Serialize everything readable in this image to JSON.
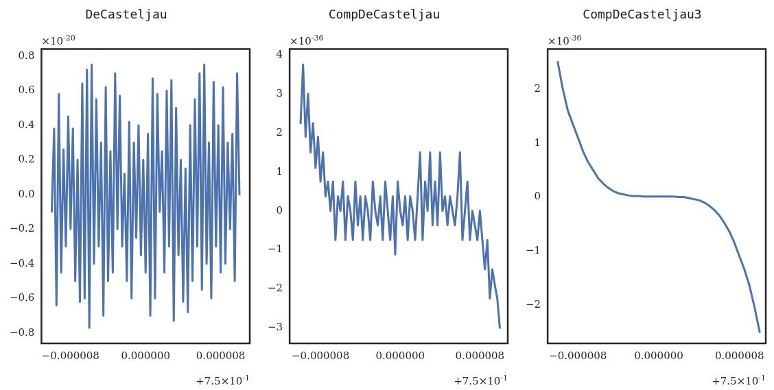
{
  "chart_data": [
    {
      "type": "line",
      "title": "DeCasteljau",
      "marker": "none",
      "grid": false,
      "legend": false,
      "annotations": [
        "×10$^{-20}$",
        "+7.5×10$^{-1}$"
      ],
      "x": [
        -1e-05,
        -9.75e-06,
        -9.5e-06,
        -9.25e-06,
        -9e-06,
        -8.75e-06,
        -8.5e-06,
        -8.25e-06,
        -8e-06,
        -7.75e-06,
        -7.5e-06,
        -7.25e-06,
        -7e-06,
        -6.75e-06,
        -6.5e-06,
        -6.25e-06,
        -6e-06,
        -5.75e-06,
        -5.5e-06,
        -5.25e-06,
        -5e-06,
        -4.75e-06,
        -4.5e-06,
        -4.25e-06,
        -4e-06,
        -3.75e-06,
        -3.5e-06,
        -3.25e-06,
        -3e-06,
        -2.75e-06,
        -2.5e-06,
        -2.25e-06,
        -2e-06,
        -1.75e-06,
        -1.5e-06,
        -1.25e-06,
        -1e-06,
        -7.5e-07,
        -5e-07,
        -2.5e-07,
        0,
        2.5e-07,
        5e-07,
        7.5e-07,
        1e-06,
        1.25e-06,
        1.5e-06,
        1.75e-06,
        2e-06,
        2.25e-06,
        2.5e-06,
        2.75e-06,
        3e-06,
        3.25e-06,
        3.5e-06,
        3.75e-06,
        4e-06,
        4.25e-06,
        4.5e-06,
        4.75e-06,
        5e-06,
        5.25e-06,
        5.5e-06,
        5.75e-06,
        6e-06,
        6.25e-06,
        6.5e-06,
        6.75e-06,
        7e-06,
        7.25e-06,
        7.5e-06,
        7.75e-06,
        8e-06,
        8.25e-06,
        8.5e-06,
        8.75e-06,
        9e-06,
        9.25e-06,
        9.5e-06,
        9.75e-06,
        1e-05
      ],
      "series": [
        {
          "color": "#4c72b0",
          "values": [
            -0.1,
            0.38,
            -0.64,
            0.58,
            -0.45,
            0.26,
            -0.3,
            0.45,
            -0.2,
            0.38,
            -0.5,
            0.2,
            -0.62,
            0.64,
            -0.6,
            0.72,
            -0.77,
            0.75,
            -0.4,
            0.55,
            -0.3,
            0.3,
            -0.7,
            0.62,
            -0.5,
            0.25,
            -0.45,
            0.7,
            -0.2,
            0.57,
            -0.3,
            0.12,
            -0.5,
            0.42,
            -0.6,
            0.3,
            -0.25,
            0.4,
            -0.35,
            0.2,
            -0.45,
            0.35,
            -0.7,
            0.67,
            -0.6,
            0.58,
            -0.1,
            0.25,
            -0.45,
            0.6,
            -0.3,
            0.66,
            -0.73,
            0.5,
            -0.35,
            0.2,
            -0.62,
            0.15,
            -0.68,
            0.4,
            -0.5,
            0.55,
            -0.3,
            0.7,
            -0.55,
            0.75,
            -0.4,
            0.3,
            -0.6,
            0.65,
            -0.3,
            0.4,
            -0.45,
            0.62,
            -0.4,
            0.3,
            -0.2,
            0.35,
            -0.5,
            0.7,
            0.0
          ]
        }
      ],
      "xlim": [
        -1.11e-05,
        1.11e-05
      ],
      "xticks": [
        {
          "value": -8e-06,
          "label": "−0.000008"
        },
        {
          "value": 0,
          "label": "0.000000"
        },
        {
          "value": 8e-06,
          "label": "0.000008"
        }
      ],
      "ylim": [
        -0.86,
        0.84
      ],
      "yticks": [
        {
          "value": -0.8,
          "label": "−0.8"
        },
        {
          "value": -0.6,
          "label": "−0.6"
        },
        {
          "value": -0.4,
          "label": "−0.4"
        },
        {
          "value": -0.2,
          "label": "−0.2"
        },
        {
          "value": 0,
          "label": "0.0"
        },
        {
          "value": 0.2,
          "label": "0.2"
        },
        {
          "value": 0.4,
          "label": "0.4"
        },
        {
          "value": 0.6,
          "label": "0.6"
        },
        {
          "value": 0.8,
          "label": "0.8"
        }
      ]
    },
    {
      "type": "line",
      "title": "CompDeCasteljau",
      "marker": "none",
      "grid": false,
      "legend": false,
      "annotations": [
        "×10$^{-36}$",
        "+7.5×10$^{-1}$"
      ],
      "x": [
        -1e-05,
        -9.75e-06,
        -9.5e-06,
        -9.25e-06,
        -9e-06,
        -8.75e-06,
        -8.5e-06,
        -8.25e-06,
        -8e-06,
        -7.75e-06,
        -7.5e-06,
        -7.25e-06,
        -7e-06,
        -6.75e-06,
        -6.5e-06,
        -6.25e-06,
        -6e-06,
        -5.75e-06,
        -5.5e-06,
        -5.25e-06,
        -5e-06,
        -4.75e-06,
        -4.5e-06,
        -4.25e-06,
        -4e-06,
        -3.75e-06,
        -3.5e-06,
        -3.25e-06,
        -3e-06,
        -2.75e-06,
        -2.5e-06,
        -2.25e-06,
        -2e-06,
        -1.75e-06,
        -1.5e-06,
        -1.25e-06,
        -1e-06,
        -7.5e-07,
        -5e-07,
        -2.5e-07,
        0,
        2.5e-07,
        5e-07,
        7.5e-07,
        1e-06,
        1.25e-06,
        1.5e-06,
        1.75e-06,
        2e-06,
        2.25e-06,
        2.5e-06,
        2.75e-06,
        3e-06,
        3.25e-06,
        3.5e-06,
        3.75e-06,
        4e-06,
        4.25e-06,
        4.5e-06,
        4.75e-06,
        5e-06,
        5.25e-06,
        5.5e-06,
        5.75e-06,
        6e-06,
        6.25e-06,
        6.5e-06,
        6.75e-06,
        7e-06,
        7.25e-06,
        7.5e-06,
        7.75e-06,
        8e-06,
        8.25e-06,
        8.5e-06,
        8.75e-06,
        9e-06,
        9.25e-06,
        9.5e-06,
        9.75e-06,
        1e-05
      ],
      "series": [
        {
          "color": "#4c72b0",
          "values": [
            2.25,
            3.75,
            1.9,
            3.0,
            1.5,
            2.25,
            1.1,
            1.9,
            0.75,
            1.5,
            0.37,
            0.75,
            0,
            0.75,
            -0.75,
            0.37,
            0,
            0.75,
            -0.75,
            0.37,
            0,
            -0.75,
            0.75,
            -0.37,
            0.37,
            -0.75,
            0.37,
            0,
            -0.75,
            0.75,
            0,
            -0.37,
            0.37,
            -0.75,
            0.75,
            0,
            -0.75,
            0.37,
            -1.12,
            0.75,
            0,
            -0.37,
            0.37,
            -0.75,
            0.37,
            0,
            -0.75,
            0.37,
            1.5,
            -0.75,
            0.75,
            0,
            1.5,
            -0.37,
            0.75,
            -0.37,
            1.5,
            0,
            0.37,
            -0.37,
            0.37,
            0,
            -0.37,
            0.37,
            1.5,
            -0.75,
            0,
            0.75,
            -0.75,
            0,
            -0.37,
            -0.75,
            0,
            -0.75,
            -1.5,
            -0.75,
            -2.25,
            -1.5,
            -1.9,
            -2.25,
            -3.0
          ]
        }
      ],
      "xlim": [
        -1.11e-05,
        1.08e-05
      ],
      "xticks": [
        {
          "value": -8e-06,
          "label": "−0.000008"
        },
        {
          "value": 0,
          "label": "0.000000"
        },
        {
          "value": 8e-06,
          "label": "0.000008"
        }
      ],
      "ylim": [
        -3.4,
        4.15
      ],
      "yticks": [
        {
          "value": -3,
          "label": "−3"
        },
        {
          "value": -2,
          "label": "−2"
        },
        {
          "value": -1,
          "label": "−1"
        },
        0,
        1,
        2,
        3,
        4
      ]
    },
    {
      "type": "line",
      "title": "CompDeCasteljau3",
      "marker": "none",
      "grid": false,
      "legend": false,
      "annotations": [
        "×10$^{-36}$",
        "+7.5×10$^{-1}$"
      ],
      "x": [
        -1e-05,
        -9.5e-06,
        -9e-06,
        -8.5e-06,
        -8e-06,
        -7.5e-06,
        -7e-06,
        -6.5e-06,
        -6e-06,
        -5.5e-06,
        -5e-06,
        -4.5e-06,
        -4e-06,
        -3.5e-06,
        -3e-06,
        -2.5e-06,
        -2e-06,
        -1.5e-06,
        -1e-06,
        -5e-07,
        0,
        5e-07,
        1e-06,
        1.5e-06,
        2e-06,
        2.5e-06,
        3e-06,
        3.5e-06,
        4e-06,
        4.5e-06,
        5e-06,
        5.5e-06,
        6e-06,
        6.5e-06,
        7e-06,
        7.5e-06,
        8e-06,
        8.5e-06,
        9e-06,
        9.5e-06,
        1e-05
      ],
      "series": [
        {
          "color": "#4c72b0",
          "values": [
            2.5,
            2.0,
            1.6,
            1.35,
            1.1,
            0.85,
            0.65,
            0.5,
            0.35,
            0.25,
            0.17,
            0.11,
            0.07,
            0.05,
            0.03,
            0.02,
            0.02,
            0.01,
            0.01,
            0.01,
            0.01,
            0.01,
            0.01,
            0.01,
            0,
            0,
            -0.02,
            -0.04,
            -0.06,
            -0.1,
            -0.16,
            -0.24,
            -0.34,
            -0.48,
            -0.64,
            -0.85,
            -1.1,
            -1.35,
            -1.65,
            -2.05,
            -2.5
          ]
        }
      ],
      "xlim": [
        -1.1e-05,
        1.06e-05
      ],
      "xticks": [
        {
          "value": -8e-06,
          "label": "−0.000008"
        },
        {
          "value": 0,
          "label": "0.000000"
        },
        {
          "value": 8e-06,
          "label": "0.000008"
        }
      ],
      "ylim": [
        -2.71,
        2.74
      ],
      "yticks": [
        {
          "value": -2,
          "label": "−2"
        },
        {
          "value": -1,
          "label": "−1"
        },
        0,
        1,
        2
      ]
    }
  ]
}
